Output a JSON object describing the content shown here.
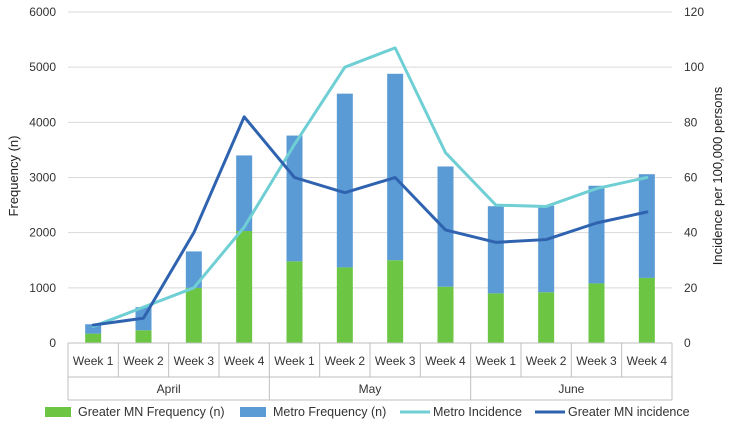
{
  "chart_data": {
    "type": "bar",
    "subtype": "stacked bar with line overlay on secondary axis",
    "groups": [
      {
        "label": "April",
        "categories": [
          "Week 1",
          "Week 2",
          "Week 3",
          "Week 4"
        ]
      },
      {
        "label": "May",
        "categories": [
          "Week 1",
          "Week 2",
          "Week 3",
          "Week 4"
        ]
      },
      {
        "label": "June",
        "categories": [
          "Week 1",
          "Week 2",
          "Week 3",
          "Week 4"
        ]
      }
    ],
    "ylabel": "Frequency (n)",
    "y2label": "Incidence per 100,000 persons",
    "ylim": [
      0,
      6000
    ],
    "y2lim": [
      0,
      120
    ],
    "yticks": [
      "0",
      "1000",
      "2000",
      "3000",
      "4000",
      "5000",
      "6000"
    ],
    "y2ticks": [
      "0",
      "20",
      "40",
      "60",
      "80",
      "100",
      "120"
    ],
    "grid": true,
    "legend_position": "bottom",
    "bar_series": [
      {
        "name": "Greater MN Frequency (n)",
        "color": "#6cc644",
        "values": [
          170,
          230,
          1000,
          2030,
          1480,
          1370,
          1500,
          1020,
          900,
          920,
          1080,
          1180
        ]
      },
      {
        "name": "Metro Frequency (n)",
        "color": "#5b9bd5",
        "values": [
          170,
          420,
          660,
          1370,
          2280,
          3150,
          3380,
          2180,
          1580,
          1570,
          1770,
          1880
        ]
      }
    ],
    "line_series": [
      {
        "name": "Metro Incidence",
        "color": "#6fcfd4",
        "values": [
          6,
          13,
          20,
          42,
          72,
          100,
          107,
          69,
          50,
          49.5,
          56,
          60
        ]
      },
      {
        "name": "Greater MN incidence",
        "color": "#2f63b0",
        "values": [
          6.5,
          9,
          40,
          82,
          60,
          54.5,
          60,
          41,
          36.5,
          37.5,
          43.5,
          47.5
        ]
      }
    ]
  }
}
